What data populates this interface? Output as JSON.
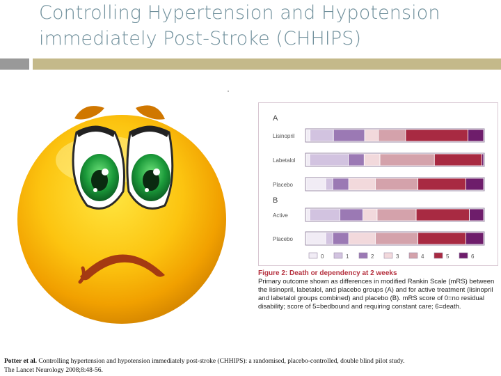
{
  "slide": {
    "title_line1": "Controlling Hypertension and Hypotension",
    "title_line2": "immediately Post-Stroke (CHHIPS)"
  },
  "chart_data": {
    "type": "bar",
    "orientation": "horizontal-stacked",
    "groups": [
      {
        "label": "A",
        "rows": [
          {
            "name": "Lisinopril",
            "values": [
              2,
              12,
              16,
              7,
              14,
              32,
              8
            ]
          },
          {
            "name": "Labetalol",
            "values": [
              2,
              22,
              9,
              9,
              31,
              27,
              1
            ]
          },
          {
            "name": "Placebo",
            "values": [
              11,
              4,
              9,
              15,
              24,
              27,
              10
            ]
          }
        ]
      },
      {
        "label": "B",
        "rows": [
          {
            "name": "Active",
            "values": [
              2,
              17,
              13,
              8,
              22,
              30,
              8
            ]
          },
          {
            "name": "Placebo",
            "values": [
              11,
              4,
              9,
              15,
              24,
              27,
              10
            ]
          }
        ]
      }
    ],
    "legend": [
      "0",
      "1",
      "2",
      "3",
      "4",
      "5",
      "6"
    ],
    "colors": [
      "#f1ecf5",
      "#d2c3e0",
      "#9b79b4",
      "#f2d9dc",
      "#d4a2ab",
      "#a82a42",
      "#6e1d6b"
    ],
    "xlim": [
      0,
      100
    ]
  },
  "caption": {
    "figure_label": "Figure 2: Death or dependency at 2 weeks",
    "text": "Primary outcome shown as differences in modified Rankin Scale (mRS) between the lisinopril, labetalol, and placebo groups (A) and for active treatment (lisinopril and labetalol groups combined) and placebo (B). mRS score of 0=no residual disability; score of 5=bedbound and requiring constant care; 6=death."
  },
  "citation": {
    "authors": "Potter et al.",
    "text": "Controlling hypertension and hypotension immediately post-stroke (CHHIPS): a randomised, placebo-controlled, double blind pilot study.",
    "journal": "The Lancet Neurology 2008;8:48-56."
  }
}
